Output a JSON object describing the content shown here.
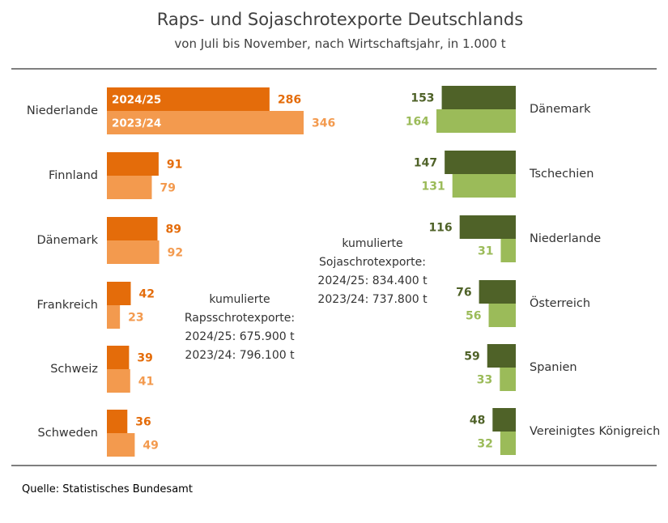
{
  "chart_data": {
    "type": "bar",
    "title": "Raps- und Sojaschrotexporte Deutschlands",
    "subtitle": "von Juli bis November, nach Wirtschaftsjahr, in 1.000 t",
    "source": "Quelle:  Statistisches Bundesamt",
    "colors": {
      "raps_2024": "#e46c0a",
      "raps_2023": "#f39a4e",
      "soja_2024": "#4f6228",
      "soja_2023": "#9bbb59"
    },
    "raps": {
      "categories": [
        "Niederlande",
        "Finnland",
        "Dänemark",
        "Frankreich",
        "Schweiz",
        "Schweden"
      ],
      "series": [
        {
          "name": "2024/25",
          "values": [
            286,
            91,
            89,
            42,
            39,
            36
          ]
        },
        {
          "name": "2023/24",
          "values": [
            346,
            79,
            92,
            23,
            41,
            49
          ]
        }
      ],
      "note_lines": [
        "kumulierte",
        "Rapsschrotexporte:",
        "2024/25: 675.900 t",
        "2023/24: 796.100 t"
      ]
    },
    "soja": {
      "categories": [
        "Dänemark",
        "Tschechien",
        "Niederlande",
        "Österreich",
        "Spanien",
        "Vereinigtes Königreich"
      ],
      "series": [
        {
          "name": "2024/25",
          "values": [
            153,
            147,
            116,
            76,
            59,
            48
          ]
        },
        {
          "name": "2023/24",
          "values": [
            164,
            131,
            31,
            56,
            33,
            32
          ]
        }
      ],
      "note_lines": [
        "kumulierte",
        "Sojaschrotexporte:",
        "2024/25: 834.400 t",
        "2023/24: 737.800 t"
      ]
    }
  }
}
